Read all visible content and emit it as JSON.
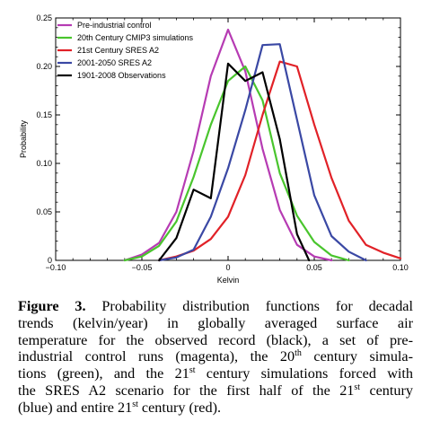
{
  "chart_data": {
    "type": "line",
    "xlabel": "Kelvin",
    "ylabel": "Probability",
    "xlim": [
      -0.1,
      0.1
    ],
    "ylim": [
      0,
      0.25
    ],
    "x_ticks": [
      -0.1,
      -0.05,
      0,
      0.05,
      0.1
    ],
    "x_tick_labels": [
      "−0.10",
      "−0.05",
      "0",
      "0.05",
      "0.10"
    ],
    "y_ticks": [
      0,
      0.05,
      0.1,
      0.15,
      0.2,
      0.25
    ],
    "y_tick_labels": [
      "0",
      "0.05",
      "0.10",
      "0.15",
      "0.20",
      "0.25"
    ],
    "legend_position": "top-left",
    "series": [
      {
        "name": "Pre-industrial control",
        "color": "#b63bb3",
        "points": [
          [
            -0.06,
            0
          ],
          [
            -0.05,
            0.006
          ],
          [
            -0.04,
            0.018
          ],
          [
            -0.03,
            0.05
          ],
          [
            -0.02,
            0.113
          ],
          [
            -0.01,
            0.19
          ],
          [
            0,
            0.238
          ],
          [
            0.01,
            0.195
          ],
          [
            0.02,
            0.115
          ],
          [
            0.03,
            0.052
          ],
          [
            0.04,
            0.016
          ],
          [
            0.05,
            0.004
          ],
          [
            0.06,
            0
          ]
        ]
      },
      {
        "name": "20th Century CMIP3 simulations",
        "color": "#49c52d",
        "points": [
          [
            -0.06,
            0
          ],
          [
            -0.05,
            0.004
          ],
          [
            -0.04,
            0.015
          ],
          [
            -0.03,
            0.04
          ],
          [
            -0.02,
            0.086
          ],
          [
            -0.01,
            0.14
          ],
          [
            0,
            0.185
          ],
          [
            0.01,
            0.2
          ],
          [
            0.02,
            0.165
          ],
          [
            0.03,
            0.09
          ],
          [
            0.04,
            0.046
          ],
          [
            0.05,
            0.019
          ],
          [
            0.06,
            0.005
          ],
          [
            0.07,
            0
          ]
        ]
      },
      {
        "name": "21st Century SRES A2",
        "color": "#e12127",
        "points": [
          [
            -0.04,
            0
          ],
          [
            -0.03,
            0.004
          ],
          [
            -0.02,
            0.01
          ],
          [
            -0.01,
            0.022
          ],
          [
            0,
            0.045
          ],
          [
            0.01,
            0.088
          ],
          [
            0.02,
            0.15
          ],
          [
            0.03,
            0.205
          ],
          [
            0.04,
            0.2
          ],
          [
            0.05,
            0.14
          ],
          [
            0.06,
            0.085
          ],
          [
            0.07,
            0.041
          ],
          [
            0.08,
            0.016
          ],
          [
            0.09,
            0.008
          ],
          [
            0.1,
            0.002
          ]
        ]
      },
      {
        "name": "2001-2050 SRES A2",
        "color": "#3a48a4",
        "points": [
          [
            -0.04,
            0
          ],
          [
            -0.03,
            0.003
          ],
          [
            -0.02,
            0.011
          ],
          [
            -0.01,
            0.045
          ],
          [
            0,
            0.095
          ],
          [
            0.01,
            0.155
          ],
          [
            0.02,
            0.222
          ],
          [
            0.03,
            0.223
          ],
          [
            0.04,
            0.145
          ],
          [
            0.05,
            0.067
          ],
          [
            0.06,
            0.025
          ],
          [
            0.07,
            0.009
          ],
          [
            0.08,
            0
          ]
        ]
      },
      {
        "name": "1901-2008 Observations",
        "color": "#000000",
        "points": [
          [
            -0.04,
            0
          ],
          [
            -0.03,
            0.023
          ],
          [
            -0.02,
            0.073
          ],
          [
            -0.01,
            0.064
          ],
          [
            0,
            0.203
          ],
          [
            0.01,
            0.185
          ],
          [
            0.02,
            0.194
          ],
          [
            0.03,
            0.125
          ],
          [
            0.04,
            0.027
          ],
          [
            0.047,
            0
          ]
        ]
      }
    ]
  },
  "caption": {
    "label": "Figure 3.",
    "lines": [
      [
        "Probability distribution functions for decadal"
      ],
      [
        "trends (kelvin/year) in globally averaged surface air"
      ],
      [
        "temperature for the observed record (black), a set of pre-"
      ],
      [
        "industrial control runs (magenta), the 20",
        "th",
        " century simula-"
      ],
      [
        "tions (green), and the 21",
        "st",
        " century simulations forced with"
      ],
      [
        "the SRES A2 scenario for the first half of the 21",
        "st",
        " century"
      ],
      [
        "(blue) and entire 21",
        "st",
        " century (red)."
      ]
    ]
  }
}
